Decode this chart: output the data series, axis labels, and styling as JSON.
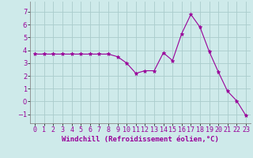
{
  "x": [
    0,
    1,
    2,
    3,
    4,
    5,
    6,
    7,
    8,
    9,
    10,
    11,
    12,
    13,
    14,
    15,
    16,
    17,
    18,
    19,
    20,
    21,
    22,
    23
  ],
  "y": [
    3.7,
    3.7,
    3.7,
    3.7,
    3.7,
    3.7,
    3.7,
    3.7,
    3.7,
    3.5,
    3.0,
    2.2,
    2.4,
    2.4,
    3.8,
    3.2,
    5.3,
    6.8,
    5.8,
    3.9,
    2.3,
    0.8,
    0.05,
    -1.1
  ],
  "line_color": "#990099",
  "marker": "*",
  "marker_size": 3.5,
  "bg_color": "#ceeaea",
  "grid_color": "#aacccc",
  "xlabel": "Windchill (Refroidissement éolien,°C)",
  "xlabel_fontsize": 6.5,
  "tick_fontsize": 6.0,
  "ylim": [
    -1.7,
    7.8
  ],
  "yticks": [
    -1,
    0,
    1,
    2,
    3,
    4,
    5,
    6,
    7
  ],
  "xtick_labels": [
    "0",
    "1",
    "2",
    "3",
    "4",
    "5",
    "6",
    "7",
    "8",
    "9",
    "10",
    "11",
    "12",
    "13",
    "14",
    "15",
    "16",
    "17",
    "18",
    "19",
    "20",
    "21",
    "22",
    "23"
  ]
}
